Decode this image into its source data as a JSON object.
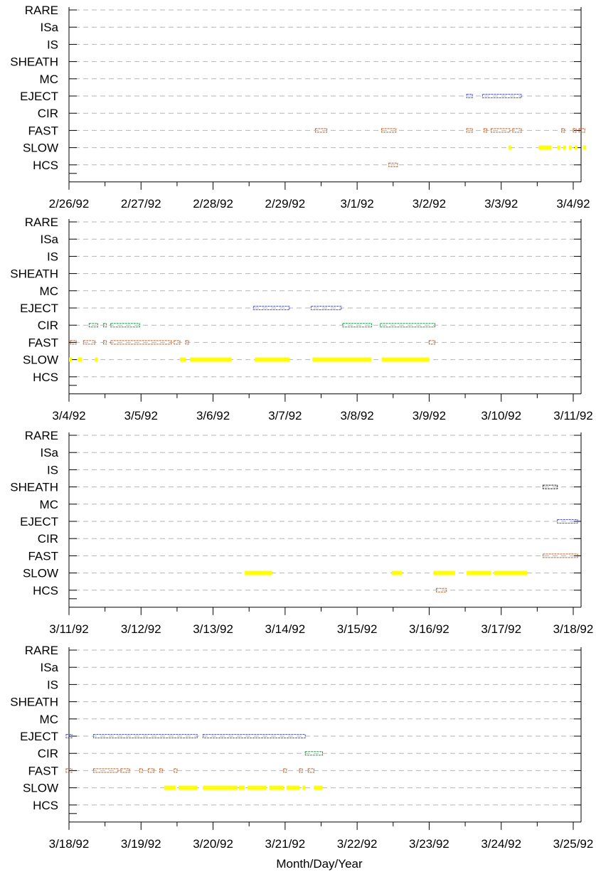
{
  "chart_data": {
    "type": "scatter",
    "categories": [
      "RARE",
      "ISa",
      "IS",
      "SHEATH",
      "MC",
      "EJECT",
      "CIR",
      "FAST",
      "SLOW",
      "HCS"
    ],
    "xlabel": "Month/Day/Year",
    "ylabel": "",
    "grid": true,
    "category_colors": {
      "SHEATH": "#202020",
      "EJECT": "#4f5bd5",
      "CIR": "#1e9a4a",
      "FAST": "#c0622a",
      "SLOW": "#ffff00",
      "HCS": "#c0622a"
    },
    "panels": [
      {
        "tick_labels": [
          "2/26/92",
          "2/27/92",
          "2/28/92",
          "2/29/92",
          "3/1/92",
          "3/2/92",
          "3/3/92",
          "3/4/92"
        ],
        "x_range_days": [
          0,
          7
        ],
        "series": [
          {
            "name": "EJECT",
            "intervals": [
              [
                5.52,
                5.6
              ],
              [
                5.74,
                6.28
              ]
            ]
          },
          {
            "name": "FAST",
            "intervals": [
              [
                3.42,
                3.58
              ],
              [
                4.34,
                4.54
              ],
              [
                5.52,
                5.6
              ],
              [
                5.76,
                5.8
              ],
              [
                5.86,
                6.12
              ],
              [
                6.16,
                6.28
              ],
              [
                6.84,
                6.88
              ],
              [
                7.0,
                7.04
              ],
              [
                7.08,
                7.16
              ]
            ]
          },
          {
            "name": "SLOW",
            "intervals": [
              [
                6.1,
                6.14
              ],
              [
                6.52,
                6.7
              ],
              [
                6.78,
                6.82
              ],
              [
                6.86,
                6.9
              ],
              [
                6.94,
                6.98
              ],
              [
                7.02,
                7.06
              ],
              [
                7.14,
                7.18
              ]
            ]
          },
          {
            "name": "HCS",
            "intervals": [
              [
                4.44,
                4.56
              ]
            ]
          }
        ]
      },
      {
        "tick_labels": [
          "3/4/92",
          "3/5/92",
          "3/6/92",
          "3/7/92",
          "3/8/92",
          "3/9/92",
          "3/10/92",
          "3/11/92"
        ],
        "x_range_days": [
          0,
          7
        ],
        "series": [
          {
            "name": "EJECT",
            "intervals": [
              [
                2.56,
                3.06
              ],
              [
                3.36,
                3.78
              ]
            ]
          },
          {
            "name": "CIR",
            "intervals": [
              [
                0.28,
                0.4
              ],
              [
                0.48,
                0.52
              ],
              [
                0.58,
                0.98
              ],
              [
                3.8,
                4.2
              ],
              [
                4.32,
                5.08
              ]
            ]
          },
          {
            "name": "FAST",
            "intervals": [
              [
                0.02,
                0.1
              ],
              [
                0.2,
                0.36
              ],
              [
                0.48,
                0.52
              ],
              [
                0.58,
                1.42
              ],
              [
                1.46,
                1.54
              ],
              [
                1.62,
                1.66
              ],
              [
                5.0,
                5.08
              ]
            ]
          },
          {
            "name": "SLOW",
            "intervals": [
              [
                0.0,
                0.04
              ],
              [
                0.12,
                0.18
              ],
              [
                0.36,
                0.4
              ],
              [
                1.54,
                1.62
              ],
              [
                1.68,
                2.26
              ],
              [
                2.58,
                3.06
              ],
              [
                3.38,
                4.2
              ],
              [
                4.34,
                5.0
              ]
            ]
          }
        ]
      },
      {
        "tick_labels": [
          "3/11/92",
          "3/12/92",
          "3/13/92",
          "3/14/92",
          "3/15/92",
          "3/16/92",
          "3/17/92",
          "3/18/92"
        ],
        "x_range_days": [
          0,
          7
        ],
        "series": [
          {
            "name": "SHEATH",
            "intervals": [
              [
                6.58,
                6.78
              ]
            ]
          },
          {
            "name": "EJECT",
            "intervals": [
              [
                6.78,
                7.06
              ]
            ]
          },
          {
            "name": "FAST",
            "intervals": [
              [
                6.58,
                7.06
              ]
            ]
          },
          {
            "name": "SLOW",
            "intervals": [
              [
                2.44,
                2.82
              ],
              [
                4.48,
                4.62
              ],
              [
                5.06,
                5.36
              ],
              [
                5.52,
                5.86
              ],
              [
                5.9,
                6.36
              ]
            ]
          },
          {
            "name": "HCS",
            "intervals": [
              [
                5.1,
                5.24
              ]
            ]
          }
        ]
      },
      {
        "tick_labels": [
          "3/18/92",
          "3/19/92",
          "3/20/92",
          "3/21/92",
          "3/22/92",
          "3/23/92",
          "3/24/92",
          "3/25/92"
        ],
        "x_range_days": [
          0,
          7
        ],
        "series": [
          {
            "name": "EJECT",
            "intervals": [
              [
                -0.04,
                0.04
              ],
              [
                0.34,
                1.78
              ],
              [
                1.86,
                3.28
              ]
            ]
          },
          {
            "name": "CIR",
            "intervals": [
              [
                3.28,
                3.52
              ]
            ]
          },
          {
            "name": "FAST",
            "intervals": [
              [
                -0.04,
                0.04
              ],
              [
                0.34,
                0.68
              ],
              [
                0.72,
                0.84
              ],
              [
                0.98,
                1.02
              ],
              [
                1.1,
                1.18
              ],
              [
                1.26,
                1.3
              ],
              [
                1.46,
                1.5
              ],
              [
                2.98,
                3.02
              ],
              [
                3.2,
                3.24
              ],
              [
                3.32,
                3.4
              ]
            ]
          },
          {
            "name": "SLOW",
            "intervals": [
              [
                1.32,
                1.48
              ],
              [
                1.52,
                1.78
              ],
              [
                1.86,
                2.34
              ],
              [
                2.36,
                2.44
              ],
              [
                2.48,
                2.74
              ],
              [
                2.78,
                2.98
              ],
              [
                3.02,
                3.2
              ],
              [
                3.24,
                3.28
              ],
              [
                3.4,
                3.52
              ]
            ]
          }
        ]
      }
    ]
  }
}
